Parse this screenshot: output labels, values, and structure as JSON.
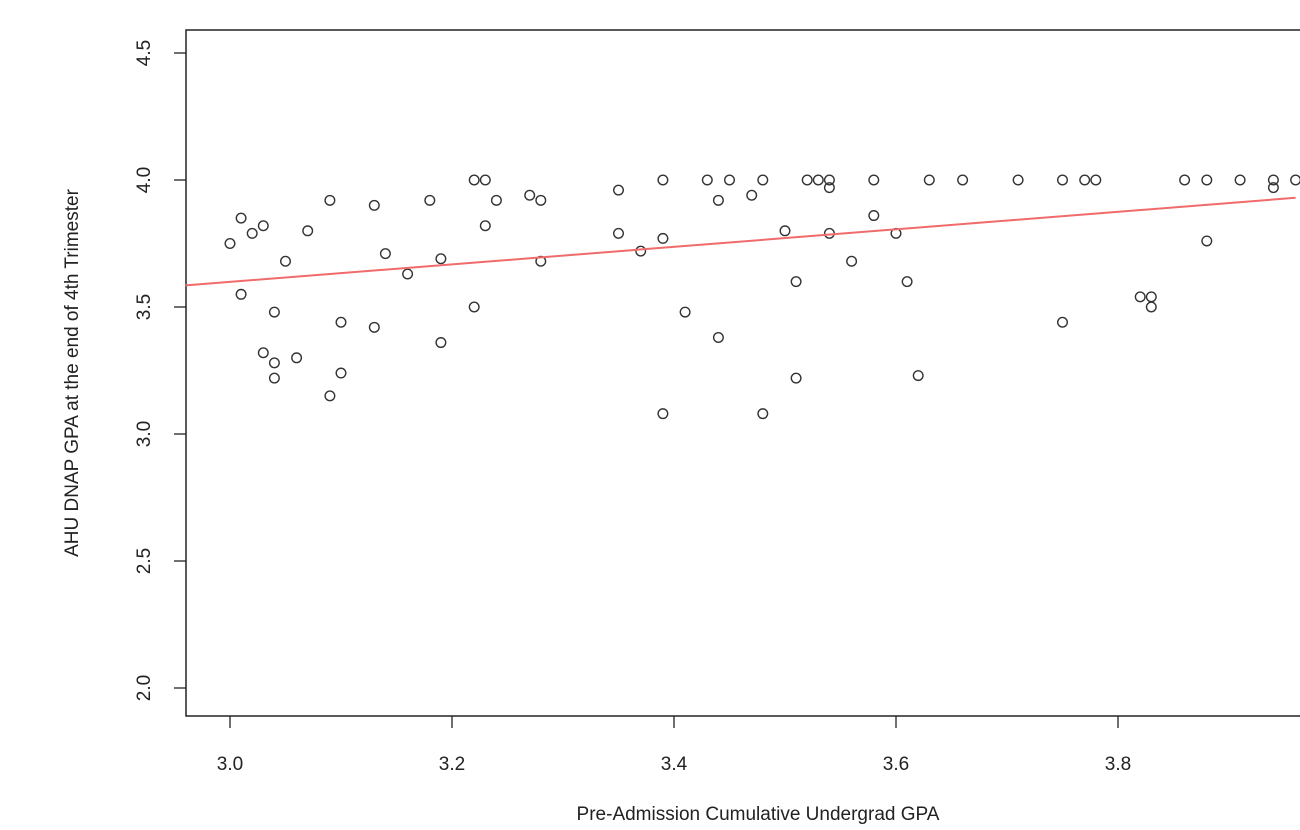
{
  "chart_data": {
    "type": "scatter",
    "title": "",
    "xlabel": "Pre-Admission Cumulative Undergrad GPA",
    "ylabel": "AHU DNAP GPA at the end of 4th Trimester",
    "xlim": [
      2.96,
      3.96
    ],
    "ylim": [
      1.95,
      4.6
    ],
    "xticks": [
      "3.0",
      "3.2",
      "3.4",
      "3.6",
      "3.8"
    ],
    "yticks": [
      "2.0",
      "2.5",
      "3.0",
      "3.5",
      "4.0",
      "4.5"
    ],
    "grid": false,
    "legend": "none",
    "point_color": "#333333",
    "trend_line": {
      "color": "#f06b6b",
      "x": [
        2.96,
        3.96
      ],
      "y": [
        3.585,
        3.93
      ]
    },
    "points": [
      [
        3.0,
        3.75
      ],
      [
        3.01,
        3.85
      ],
      [
        3.01,
        3.55
      ],
      [
        3.02,
        3.79
      ],
      [
        3.03,
        3.82
      ],
      [
        3.03,
        3.32
      ],
      [
        3.04,
        3.48
      ],
      [
        3.04,
        3.28
      ],
      [
        3.04,
        3.22
      ],
      [
        3.05,
        3.68
      ],
      [
        3.06,
        3.3
      ],
      [
        3.07,
        3.8
      ],
      [
        3.09,
        3.92
      ],
      [
        3.09,
        3.15
      ],
      [
        3.1,
        3.44
      ],
      [
        3.1,
        3.24
      ],
      [
        3.13,
        3.9
      ],
      [
        3.13,
        3.42
      ],
      [
        3.14,
        3.71
      ],
      [
        3.16,
        3.63
      ],
      [
        3.18,
        3.92
      ],
      [
        3.19,
        3.69
      ],
      [
        3.19,
        3.36
      ],
      [
        3.22,
        4.0
      ],
      [
        3.22,
        3.5
      ],
      [
        3.23,
        4.0
      ],
      [
        3.23,
        3.82
      ],
      [
        3.24,
        3.92
      ],
      [
        3.27,
        3.94
      ],
      [
        3.28,
        3.92
      ],
      [
        3.28,
        3.68
      ],
      [
        3.35,
        3.96
      ],
      [
        3.35,
        3.79
      ],
      [
        3.37,
        3.72
      ],
      [
        3.39,
        4.0
      ],
      [
        3.39,
        3.77
      ],
      [
        3.39,
        3.08
      ],
      [
        3.41,
        3.48
      ],
      [
        3.43,
        4.0
      ],
      [
        3.44,
        3.92
      ],
      [
        3.44,
        3.38
      ],
      [
        3.45,
        4.0
      ],
      [
        3.47,
        3.94
      ],
      [
        3.48,
        4.0
      ],
      [
        3.48,
        3.08
      ],
      [
        3.5,
        3.8
      ],
      [
        3.51,
        3.6
      ],
      [
        3.51,
        3.22
      ],
      [
        3.52,
        4.0
      ],
      [
        3.53,
        4.0
      ],
      [
        3.54,
        4.0
      ],
      [
        3.54,
        3.97
      ],
      [
        3.54,
        3.79
      ],
      [
        3.56,
        3.68
      ],
      [
        3.58,
        4.0
      ],
      [
        3.58,
        3.86
      ],
      [
        3.6,
        3.79
      ],
      [
        3.61,
        3.6
      ],
      [
        3.62,
        3.23
      ],
      [
        3.63,
        4.0
      ],
      [
        3.66,
        4.0
      ],
      [
        3.71,
        4.0
      ],
      [
        3.75,
        4.0
      ],
      [
        3.75,
        3.44
      ],
      [
        3.77,
        4.0
      ],
      [
        3.78,
        4.0
      ],
      [
        3.82,
        3.54
      ],
      [
        3.83,
        3.54
      ],
      [
        3.83,
        3.5
      ],
      [
        3.86,
        4.0
      ],
      [
        3.88,
        4.0
      ],
      [
        3.88,
        3.76
      ],
      [
        3.91,
        4.0
      ],
      [
        3.94,
        4.0
      ],
      [
        3.94,
        3.97
      ],
      [
        3.96,
        4.0
      ]
    ]
  }
}
